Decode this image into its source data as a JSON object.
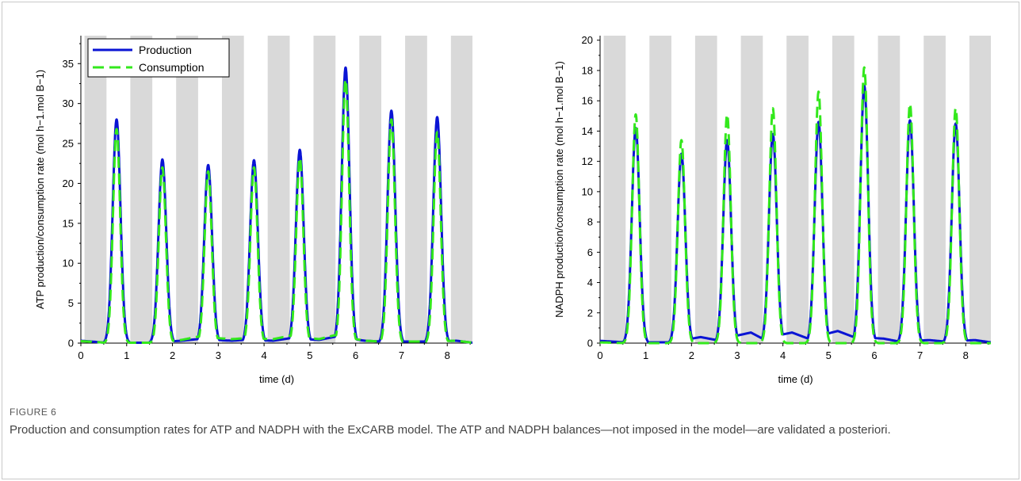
{
  "figure": {
    "label": "FIGURE 6",
    "caption": "Production and consumption rates for ATP and NADPH with the ExCARB model.  The ATP and NADPH balances—not imposed in the model—are validated a posteriori."
  },
  "colors": {
    "production": "#0a14d4",
    "consumption": "#33e81c",
    "night_band": "#d9d9d9"
  },
  "chart_data": [
    {
      "type": "line",
      "xlabel": "time (d)",
      "ylabel": "ATP production/consumption rate (mol h−1.mol B−1)",
      "xlim": [
        0,
        8.55
      ],
      "ylim": [
        0,
        38.5
      ],
      "xticks": [
        0,
        1,
        2,
        3,
        4,
        5,
        6,
        7,
        8
      ],
      "yticks": [
        0,
        5,
        10,
        15,
        20,
        25,
        30,
        35
      ],
      "grid": false,
      "legend": "top-left",
      "night_periods": [
        [
          0.08,
          0.56
        ],
        [
          0.58,
          1.06
        ],
        [
          1.08,
          1.56
        ],
        [
          1.58,
          2.06
        ],
        [
          2.08,
          2.56
        ],
        [
          2.58,
          3.06
        ],
        [
          3.08,
          3.56
        ],
        [
          3.58,
          4.06
        ],
        [
          4.08,
          4.56
        ],
        [
          4.58,
          5.06
        ],
        [
          5.08,
          5.56
        ],
        [
          5.58,
          6.06
        ],
        [
          6.08,
          6.56
        ],
        [
          6.58,
          7.06
        ],
        [
          7.08,
          7.56
        ],
        [
          7.58,
          8.06
        ],
        [
          8.08,
          8.55
        ]
      ],
      "series": [
        {
          "name": "Production",
          "style": "solid",
          "peaks": [
            [
              0.78,
              28.0
            ],
            [
              1.78,
              23.0
            ],
            [
              2.78,
              22.3
            ],
            [
              3.78,
              22.9
            ],
            [
              4.78,
              24.2
            ],
            [
              5.78,
              34.5
            ],
            [
              6.78,
              29.1
            ],
            [
              7.78,
              28.3
            ]
          ],
          "baseline": [
            [
              0,
              0.3
            ],
            [
              0.55,
              0.05
            ],
            [
              1.55,
              0.05
            ],
            [
              2.2,
              0.3
            ],
            [
              2.55,
              0.5
            ],
            [
              3.3,
              0.3
            ],
            [
              3.55,
              0.4
            ],
            [
              4.2,
              0.3
            ],
            [
              4.55,
              0.6
            ],
            [
              5.2,
              0.4
            ],
            [
              5.55,
              0.8
            ],
            [
              6.2,
              0.3
            ],
            [
              6.55,
              0.2
            ],
            [
              7.2,
              0.2
            ],
            [
              7.55,
              0.2
            ],
            [
              8.2,
              0.3
            ],
            [
              8.55,
              0.05
            ]
          ]
        },
        {
          "name": "Consumption",
          "style": "dashed",
          "peaks": [
            [
              0.78,
              26.8
            ],
            [
              1.78,
              22.0
            ],
            [
              2.78,
              21.5
            ],
            [
              3.78,
              22.0
            ],
            [
              4.78,
              23.2
            ],
            [
              5.78,
              33.0
            ],
            [
              6.78,
              28.0
            ],
            [
              7.78,
              26.4
            ]
          ],
          "baseline": [
            [
              0,
              0.25
            ],
            [
              0.55,
              0.05
            ],
            [
              1.55,
              0.05
            ],
            [
              2.2,
              0.4
            ],
            [
              2.55,
              0.8
            ],
            [
              3.3,
              0.5
            ],
            [
              3.55,
              0.6
            ],
            [
              4.2,
              0.5
            ],
            [
              4.55,
              0.9
            ],
            [
              5.2,
              0.5
            ],
            [
              5.55,
              1.0
            ],
            [
              6.2,
              0.3
            ],
            [
              6.55,
              0.2
            ],
            [
              7.2,
              0.2
            ],
            [
              7.55,
              0.2
            ],
            [
              8.2,
              0.3
            ],
            [
              8.55,
              0.05
            ]
          ]
        }
      ]
    },
    {
      "type": "line",
      "xlabel": "time (d)",
      "ylabel": "NADPH production/consumption rate (mol h−1.mol B−1)",
      "xlim": [
        0,
        8.55
      ],
      "ylim": [
        0,
        20.3
      ],
      "xticks": [
        0,
        1,
        2,
        3,
        4,
        5,
        6,
        7,
        8
      ],
      "yticks": [
        0,
        2,
        4,
        6,
        8,
        10,
        12,
        14,
        16,
        18,
        20
      ],
      "grid": false,
      "legend": "none",
      "night_periods": [
        [
          0.08,
          0.56
        ],
        [
          0.58,
          1.06
        ],
        [
          1.08,
          1.56
        ],
        [
          1.58,
          2.06
        ],
        [
          2.08,
          2.56
        ],
        [
          2.58,
          3.06
        ],
        [
          3.08,
          3.56
        ],
        [
          3.58,
          4.06
        ],
        [
          4.08,
          4.56
        ],
        [
          4.58,
          5.06
        ],
        [
          5.08,
          5.56
        ],
        [
          5.58,
          6.06
        ],
        [
          6.08,
          6.56
        ],
        [
          6.58,
          7.06
        ],
        [
          7.08,
          7.56
        ],
        [
          7.58,
          8.06
        ],
        [
          8.08,
          8.55
        ]
      ],
      "series": [
        {
          "name": "Production",
          "style": "solid",
          "peaks": [
            [
              0.78,
              14.2
            ],
            [
              1.78,
              12.5
            ],
            [
              2.78,
              13.4
            ],
            [
              3.78,
              13.8
            ],
            [
              4.78,
              14.6
            ],
            [
              5.78,
              17.0
            ],
            [
              6.78,
              14.7
            ],
            [
              7.78,
              14.5
            ]
          ],
          "baseline": [
            [
              0,
              0.15
            ],
            [
              0.55,
              0.05
            ],
            [
              1.55,
              0.05
            ],
            [
              2.2,
              0.4
            ],
            [
              2.55,
              0.2
            ],
            [
              3.3,
              0.7
            ],
            [
              3.55,
              0.3
            ],
            [
              4.2,
              0.7
            ],
            [
              4.55,
              0.3
            ],
            [
              5.2,
              0.8
            ],
            [
              5.55,
              0.4
            ],
            [
              6.2,
              0.3
            ],
            [
              6.55,
              0.1
            ],
            [
              7.2,
              0.2
            ],
            [
              7.55,
              0.1
            ],
            [
              8.2,
              0.2
            ],
            [
              8.55,
              0.05
            ]
          ]
        },
        {
          "name": "Consumption",
          "style": "dashed",
          "peaks": [
            [
              0.78,
              15.1
            ],
            [
              1.78,
              13.4
            ],
            [
              2.78,
              15.1
            ],
            [
              3.78,
              15.5
            ],
            [
              4.78,
              16.6
            ],
            [
              5.78,
              18.2
            ],
            [
              6.78,
              15.8
            ],
            [
              7.78,
              15.5
            ]
          ],
          "baseline": [
            [
              0,
              0.05
            ],
            [
              0.55,
              0.0
            ],
            [
              1.55,
              0.0
            ],
            [
              2.2,
              0.0
            ],
            [
              2.55,
              0.0
            ],
            [
              3.3,
              0.0
            ],
            [
              3.55,
              0.0
            ],
            [
              4.2,
              0.0
            ],
            [
              4.55,
              0.0
            ],
            [
              5.2,
              0.0
            ],
            [
              5.55,
              0.0
            ],
            [
              6.2,
              0.0
            ],
            [
              6.55,
              0.0
            ],
            [
              7.2,
              0.0
            ],
            [
              7.55,
              0.0
            ],
            [
              8.2,
              0.0
            ],
            [
              8.55,
              0.0
            ]
          ]
        }
      ]
    }
  ]
}
